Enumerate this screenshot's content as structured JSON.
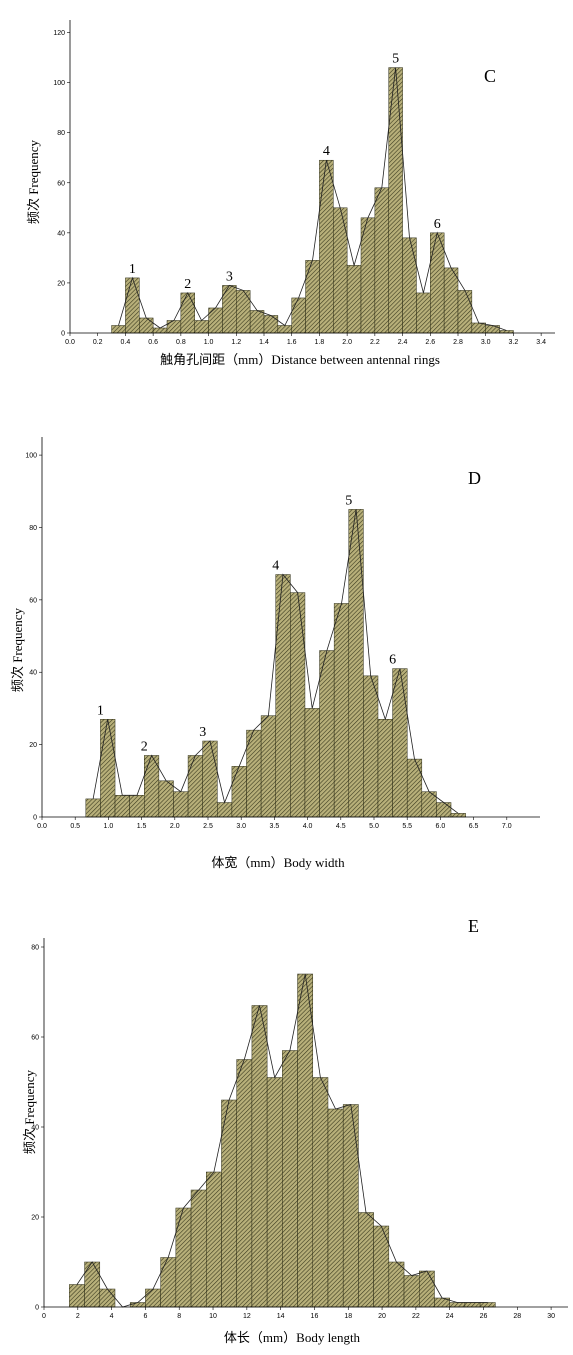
{
  "colors": {
    "bar_fill": "#b8b07a",
    "hatch": "#3a3a1e",
    "edge": "#2a2a14",
    "line": "#222222",
    "axis": "#000000"
  },
  "chart_data": [
    {
      "type": "bar",
      "panel": "C",
      "xlabel": "触角孔间距（mm）Distance between antennal rings",
      "ylabel": "频次 Frequency",
      "xlim": [
        0.0,
        3.5
      ],
      "ylim": [
        0,
        125
      ],
      "xticks": [
        "0.0",
        "0.2",
        "0.4",
        "0.6",
        "0.8",
        "1.0",
        "1.2",
        "1.4",
        "1.6",
        "1.8",
        "2.0",
        "2.2",
        "2.4",
        "2.6",
        "2.8",
        "3.0",
        "3.2",
        "3.4"
      ],
      "yticks": [
        "0",
        "20",
        "40",
        "60",
        "80",
        "100",
        "120"
      ],
      "bin_width": 0.1,
      "bins": [
        {
          "x": 0.3,
          "y": 3
        },
        {
          "x": 0.4,
          "y": 22
        },
        {
          "x": 0.5,
          "y": 6
        },
        {
          "x": 0.6,
          "y": 2
        },
        {
          "x": 0.7,
          "y": 5
        },
        {
          "x": 0.8,
          "y": 16
        },
        {
          "x": 0.9,
          "y": 5
        },
        {
          "x": 1.0,
          "y": 10
        },
        {
          "x": 1.1,
          "y": 19
        },
        {
          "x": 1.2,
          "y": 17
        },
        {
          "x": 1.3,
          "y": 9
        },
        {
          "x": 1.4,
          "y": 7
        },
        {
          "x": 1.5,
          "y": 3
        },
        {
          "x": 1.6,
          "y": 14
        },
        {
          "x": 1.7,
          "y": 29
        },
        {
          "x": 1.8,
          "y": 69
        },
        {
          "x": 1.9,
          "y": 50
        },
        {
          "x": 2.0,
          "y": 27
        },
        {
          "x": 2.1,
          "y": 46
        },
        {
          "x": 2.2,
          "y": 58
        },
        {
          "x": 2.3,
          "y": 106
        },
        {
          "x": 2.4,
          "y": 38
        },
        {
          "x": 2.5,
          "y": 16
        },
        {
          "x": 2.6,
          "y": 40
        },
        {
          "x": 2.7,
          "y": 26
        },
        {
          "x": 2.8,
          "y": 17
        },
        {
          "x": 2.9,
          "y": 4
        },
        {
          "x": 3.0,
          "y": 3
        },
        {
          "x": 3.1,
          "y": 1
        }
      ],
      "peaks": [
        {
          "label": "1",
          "x": 0.45,
          "y": 22
        },
        {
          "label": "2",
          "x": 0.85,
          "y": 16
        },
        {
          "label": "3",
          "x": 1.15,
          "y": 19
        },
        {
          "label": "4",
          "x": 1.85,
          "y": 69
        },
        {
          "label": "5",
          "x": 2.35,
          "y": 106
        },
        {
          "label": "6",
          "x": 2.65,
          "y": 40
        }
      ]
    },
    {
      "type": "bar",
      "panel": "D",
      "xlabel": "体宽（mm）Body width",
      "ylabel": "频次 Frequency",
      "xlim": [
        0.0,
        7.5
      ],
      "ylim": [
        0,
        105
      ],
      "xticks": [
        "0.0",
        "0.5",
        "1.0",
        "1.5",
        "2.0",
        "2.5",
        "3.0",
        "3.5",
        "4.0",
        "4.5",
        "5.0",
        "5.5",
        "6.0",
        "6.5",
        "7.0"
      ],
      "yticks": [
        "0",
        "20",
        "40",
        "60",
        "80",
        "100"
      ],
      "bin_width": 0.22,
      "bins": [
        {
          "x": 0.66,
          "y": 5
        },
        {
          "x": 0.88,
          "y": 27
        },
        {
          "x": 1.1,
          "y": 6
        },
        {
          "x": 1.32,
          "y": 6
        },
        {
          "x": 1.54,
          "y": 17
        },
        {
          "x": 1.76,
          "y": 10
        },
        {
          "x": 1.98,
          "y": 7
        },
        {
          "x": 2.2,
          "y": 17
        },
        {
          "x": 2.42,
          "y": 21
        },
        {
          "x": 2.64,
          "y": 4
        },
        {
          "x": 2.86,
          "y": 14
        },
        {
          "x": 3.08,
          "y": 24
        },
        {
          "x": 3.3,
          "y": 28
        },
        {
          "x": 3.52,
          "y": 67
        },
        {
          "x": 3.74,
          "y": 62
        },
        {
          "x": 3.96,
          "y": 30
        },
        {
          "x": 4.18,
          "y": 46
        },
        {
          "x": 4.4,
          "y": 59
        },
        {
          "x": 4.62,
          "y": 85
        },
        {
          "x": 4.84,
          "y": 39
        },
        {
          "x": 5.06,
          "y": 27
        },
        {
          "x": 5.28,
          "y": 41
        },
        {
          "x": 5.5,
          "y": 16
        },
        {
          "x": 5.72,
          "y": 7
        },
        {
          "x": 5.94,
          "y": 4
        },
        {
          "x": 6.16,
          "y": 1
        }
      ],
      "peaks": [
        {
          "label": "1",
          "x": 0.88,
          "y": 27
        },
        {
          "label": "2",
          "x": 1.54,
          "y": 17
        },
        {
          "label": "3",
          "x": 2.42,
          "y": 21
        },
        {
          "label": "4",
          "x": 3.52,
          "y": 67
        },
        {
          "label": "5",
          "x": 4.62,
          "y": 85
        },
        {
          "label": "6",
          "x": 5.28,
          "y": 41
        }
      ]
    },
    {
      "type": "bar",
      "panel": "E",
      "xlabel": "体长（mm）Body length",
      "ylabel": "频次 Frequency",
      "xlim": [
        0,
        31
      ],
      "ylim": [
        0,
        82
      ],
      "xticks": [
        "0",
        "2",
        "4",
        "6",
        "8",
        "10",
        "12",
        "14",
        "16",
        "18",
        "20",
        "22",
        "24",
        "26",
        "28",
        "30"
      ],
      "yticks": [
        "0",
        "20",
        "40",
        "60",
        "80"
      ],
      "bin_width": 0.9,
      "bins": [
        {
          "x": 1.5,
          "y": 5
        },
        {
          "x": 2.4,
          "y": 10
        },
        {
          "x": 3.3,
          "y": 4
        },
        {
          "x": 4.2,
          "y": 0
        },
        {
          "x": 5.1,
          "y": 1
        },
        {
          "x": 6.0,
          "y": 4
        },
        {
          "x": 6.9,
          "y": 11
        },
        {
          "x": 7.8,
          "y": 22
        },
        {
          "x": 8.7,
          "y": 26
        },
        {
          "x": 9.6,
          "y": 30
        },
        {
          "x": 10.5,
          "y": 46
        },
        {
          "x": 11.4,
          "y": 55
        },
        {
          "x": 12.3,
          "y": 67
        },
        {
          "x": 13.2,
          "y": 51
        },
        {
          "x": 14.1,
          "y": 57
        },
        {
          "x": 15.0,
          "y": 74
        },
        {
          "x": 15.9,
          "y": 51
        },
        {
          "x": 16.8,
          "y": 44
        },
        {
          "x": 17.7,
          "y": 45
        },
        {
          "x": 18.6,
          "y": 21
        },
        {
          "x": 19.5,
          "y": 18
        },
        {
          "x": 20.4,
          "y": 10
        },
        {
          "x": 21.3,
          "y": 7
        },
        {
          "x": 22.2,
          "y": 8
        },
        {
          "x": 23.1,
          "y": 2
        },
        {
          "x": 24.0,
          "y": 1
        },
        {
          "x": 24.9,
          "y": 1
        },
        {
          "x": 25.8,
          "y": 1
        }
      ],
      "peaks": []
    }
  ]
}
